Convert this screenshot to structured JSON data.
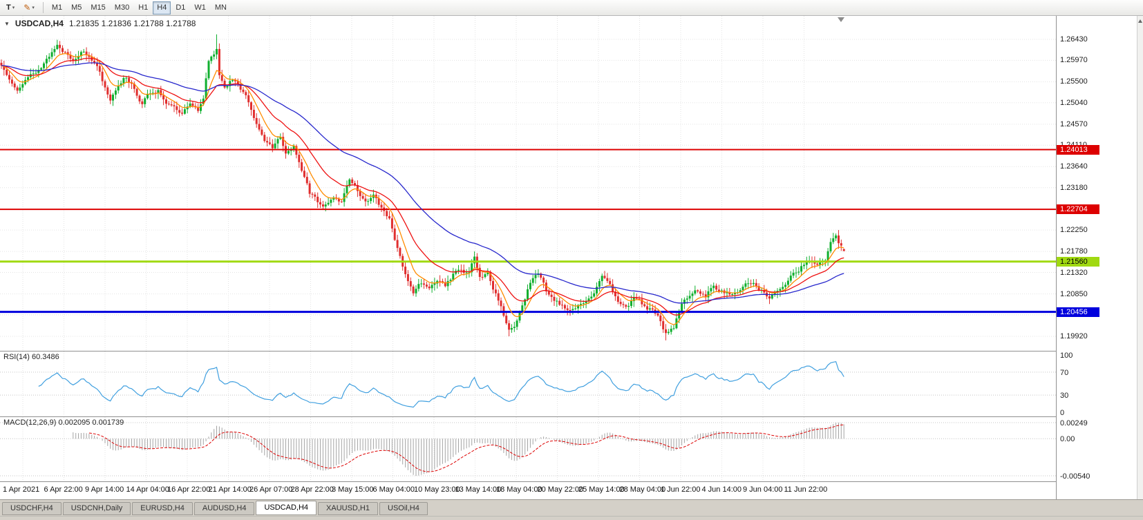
{
  "colors": {
    "up": "#0faf2e",
    "down": "#e02e2e",
    "grid": "#e3e3e3",
    "level": "#c4c4c4"
  },
  "icons": {
    "template_letter": "T",
    "dropdown": "▾",
    "pencil": "✎",
    "symbol_caret": "▼"
  },
  "toolbar": {
    "timeframes": [
      "M1",
      "M5",
      "M15",
      "M30",
      "H1",
      "H4",
      "D1",
      "W1",
      "MN"
    ],
    "active": "H4"
  },
  "chart": {
    "header": {
      "symbol": "USDCAD,H4",
      "ohlc": "1.21835 1.21836 1.21788 1.21788"
    }
  },
  "rsi": {
    "label": "RSI(14) 60.3486",
    "period": 14,
    "current": "60.3486",
    "color": "#3f9fdf",
    "levels": [
      {
        "label": "100",
        "value": 100
      },
      {
        "label": "70",
        "value": 70
      },
      {
        "label": "30",
        "value": 30
      },
      {
        "label": "0",
        "value": 0
      }
    ]
  },
  "macd": {
    "label": "MACD(12,26,9) 0.002095 0.001739",
    "values": [
      "0.002095",
      "0.001739"
    ],
    "axis_labels": [
      "0.00249",
      "0.00",
      "-0.00540"
    ],
    "hist_color": "#a3a3a3",
    "signal_color": "#dd0000"
  },
  "tabs": [
    "USDCHF,H4",
    "USDCNH,Daily",
    "EURUSD,H4",
    "AUDUSD,H4",
    "USDCAD,H4",
    "XAUUSD,H1",
    "USOil,H4"
  ],
  "active_tab": "USDCAD,H4",
  "chart_data": {
    "type": "candlestick",
    "symbol": "USDCAD",
    "timeframe": "H4",
    "bars": 318,
    "current_bar": {
      "open": 1.21835,
      "high": 1.21836,
      "low": 1.21788,
      "close": 1.21788
    },
    "y_axis": {
      "min": 1.1961,
      "max": 1.27,
      "ticks": [
        "1.26430",
        "1.25970",
        "1.25500",
        "1.25040",
        "1.24570",
        "1.24110",
        "1.23640",
        "1.23180",
        "1.22710",
        "1.22250",
        "1.21780",
        "1.21320",
        "1.20850",
        "1.20390",
        "1.19920"
      ]
    },
    "x_axis": {
      "labels": [
        "1 Apr 2021",
        "6 Apr 22:00",
        "9 Apr 14:00",
        "14 Apr 04:00",
        "16 Apr 22:00",
        "21 Apr 14:00",
        "26 Apr 07:00",
        "28 Apr 22:00",
        "3 May 15:00",
        "6 May 04:00",
        "10 May 23:00",
        "13 May 14:00",
        "18 May 04:00",
        "20 May 22:00",
        "25 May 14:00",
        "28 May 04:00",
        "1 Jun 22:00",
        "4 Jun 14:00",
        "9 Jun 04:00",
        "11 Jun 22:00"
      ]
    },
    "horizontal_lines": [
      {
        "price": 1.24013,
        "label": "1.24013",
        "color": "#dd0000",
        "width": 2,
        "tag_text": "#ffffff"
      },
      {
        "price": 1.22704,
        "label": "1.22704",
        "color": "#dd0000",
        "width": 2,
        "tag_text": "#ffffff"
      },
      {
        "price": 1.2156,
        "label": "1.21560",
        "color": "#a0d911",
        "width": 3,
        "tag_text": "#000000"
      },
      {
        "price": 1.20456,
        "label": "1.20456",
        "color": "#0000dd",
        "width": 3,
        "tag_text": "#ffffff"
      }
    ],
    "moving_averages": [
      {
        "period": 8,
        "color": "#ff8c00"
      },
      {
        "period": 21,
        "color": "#ee1111"
      },
      {
        "period": 55,
        "color": "#2626cc"
      }
    ],
    "close_anchors": [
      [
        0,
        1.2585
      ],
      [
        3,
        1.2562
      ],
      [
        6,
        1.254
      ],
      [
        9,
        1.2552
      ],
      [
        12,
        1.2568
      ],
      [
        15,
        1.2582
      ],
      [
        18,
        1.2608
      ],
      [
        21,
        1.263
      ],
      [
        24,
        1.2615
      ],
      [
        27,
        1.26
      ],
      [
        30,
        1.2622
      ],
      [
        33,
        1.2603
      ],
      [
        36,
        1.2588
      ],
      [
        39,
        1.254
      ],
      [
        41,
        1.2515
      ],
      [
        44,
        1.2548
      ],
      [
        47,
        1.2562
      ],
      [
        50,
        1.2538
      ],
      [
        53,
        1.25
      ],
      [
        56,
        1.2525
      ],
      [
        59,
        1.2532
      ],
      [
        62,
        1.2508
      ],
      [
        65,
        1.249
      ],
      [
        68,
        1.2478
      ],
      [
        71,
        1.2498
      ],
      [
        74,
        1.2482
      ],
      [
        76,
        1.251
      ],
      [
        78,
        1.2595
      ],
      [
        80,
        1.2612
      ],
      [
        81,
        1.2625
      ],
      [
        82,
        1.2565
      ],
      [
        84,
        1.2542
      ],
      [
        87,
        1.2558
      ],
      [
        90,
        1.2532
      ],
      [
        93,
        1.2505
      ],
      [
        96,
        1.246
      ],
      [
        99,
        1.2425
      ],
      [
        102,
        1.2405
      ],
      [
        105,
        1.2425
      ],
      [
        107,
        1.2398
      ],
      [
        110,
        1.2408
      ],
      [
        113,
        1.235
      ],
      [
        116,
        1.2305
      ],
      [
        119,
        1.2288
      ],
      [
        122,
        1.2282
      ],
      [
        125,
        1.2302
      ],
      [
        128,
        1.229
      ],
      [
        131,
        1.2328
      ],
      [
        134,
        1.2312
      ],
      [
        137,
        1.2285
      ],
      [
        140,
        1.2302
      ],
      [
        143,
        1.2272
      ],
      [
        146,
        1.2245
      ],
      [
        149,
        1.2185
      ],
      [
        152,
        1.2125
      ],
      [
        155,
        1.2088
      ],
      [
        158,
        1.2108
      ],
      [
        161,
        1.2092
      ],
      [
        164,
        1.2118
      ],
      [
        167,
        1.2105
      ],
      [
        170,
        1.2128
      ],
      [
        173,
        1.2138
      ],
      [
        176,
        1.2128
      ],
      [
        178,
        1.2162
      ],
      [
        180,
        1.2122
      ],
      [
        183,
        1.2132
      ],
      [
        186,
        1.2085
      ],
      [
        189,
        1.2038
      ],
      [
        191,
        1.2005
      ],
      [
        193,
        1.2015
      ],
      [
        196,
        1.2062
      ],
      [
        199,
        1.2108
      ],
      [
        202,
        1.2128
      ],
      [
        205,
        1.2092
      ],
      [
        208,
        1.2072
      ],
      [
        211,
        1.2062
      ],
      [
        214,
        1.2052
      ],
      [
        217,
        1.2062
      ],
      [
        220,
        1.2072
      ],
      [
        223,
        1.2092
      ],
      [
        226,
        1.2118
      ],
      [
        229,
        1.2098
      ],
      [
        232,
        1.2072
      ],
      [
        235,
        1.2062
      ],
      [
        238,
        1.2072
      ],
      [
        241,
        1.2062
      ],
      [
        244,
        1.2052
      ],
      [
        247,
        1.2032
      ],
      [
        250,
        1.1998
      ],
      [
        253,
        1.2012
      ],
      [
        256,
        1.2062
      ],
      [
        259,
        1.2082
      ],
      [
        262,
        1.2092
      ],
      [
        265,
        1.2082
      ],
      [
        268,
        1.2102
      ],
      [
        271,
        1.2092
      ],
      [
        274,
        1.2082
      ],
      [
        277,
        1.2092
      ],
      [
        280,
        1.2102
      ],
      [
        283,
        1.2112
      ],
      [
        286,
        1.2092
      ],
      [
        289,
        1.2072
      ],
      [
        292,
        1.2092
      ],
      [
        295,
        1.2112
      ],
      [
        298,
        1.2132
      ],
      [
        301,
        1.2146
      ],
      [
        304,
        1.2156
      ],
      [
        307,
        1.215
      ],
      [
        310,
        1.2162
      ],
      [
        312,
        1.2196
      ],
      [
        314,
        1.2206
      ],
      [
        316,
        1.2186
      ],
      [
        317,
        1.21788
      ]
    ],
    "wick_spikes": [
      {
        "bar": 81,
        "high": 1.2654
      },
      {
        "bar": 178,
        "high": 1.2178
      },
      {
        "bar": 191,
        "low": 1.1992
      },
      {
        "bar": 250,
        "low": 1.1983
      },
      {
        "bar": 313,
        "high": 1.2212
      }
    ]
  }
}
